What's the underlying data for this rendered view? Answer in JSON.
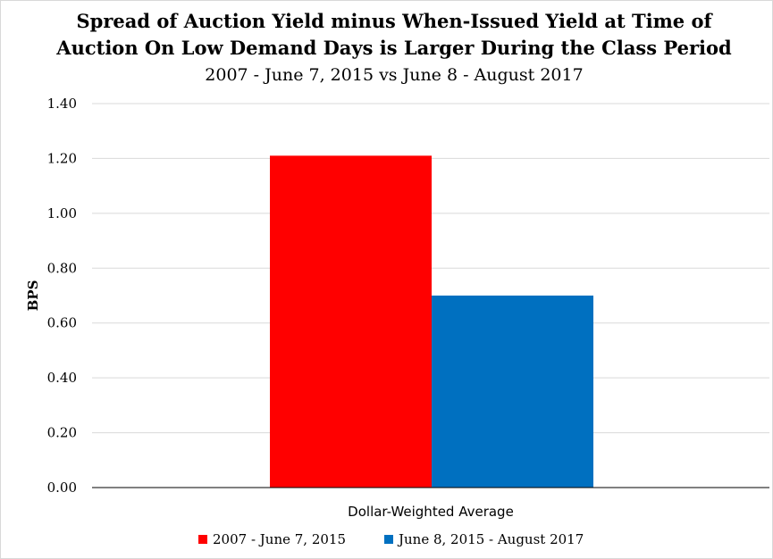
{
  "chart_data": {
    "type": "bar",
    "title_lines": [
      "Spread of Auction Yield minus When-Issued Yield at Time of",
      "Auction On Low Demand Days is Larger During the Class Period"
    ],
    "subtitle": "2007 - June 7, 2015 vs June 8 - August 2017",
    "categories": [
      "Dollar-Weighted Average"
    ],
    "series": [
      {
        "name": "2007 - June 7, 2015",
        "values": [
          1.21
        ],
        "color": "#ff0000"
      },
      {
        "name": "June 8, 2015 - August 2017",
        "values": [
          0.7
        ],
        "color": "#0070c0"
      }
    ],
    "ylabel": "BPS",
    "xlabel": "",
    "ylim": [
      0,
      1.4
    ],
    "yticks": [
      "0.00",
      "0.20",
      "0.40",
      "0.60",
      "0.80",
      "1.00",
      "1.20",
      "1.40"
    ],
    "grid": true,
    "legend_position": "bottom"
  }
}
